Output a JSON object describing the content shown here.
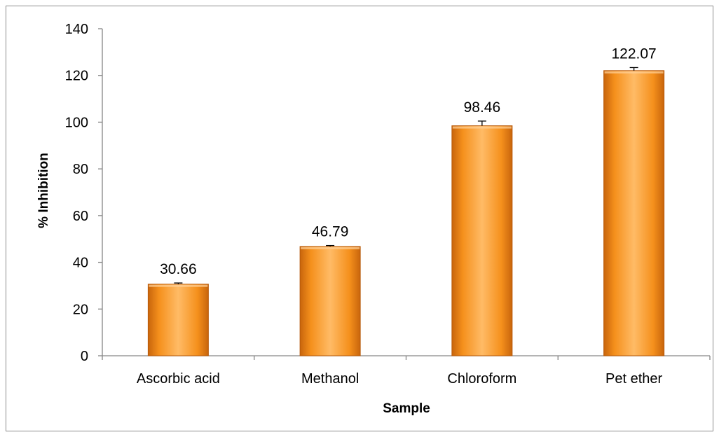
{
  "chart_data": {
    "type": "bar",
    "title": "",
    "xlabel": "Sample",
    "ylabel": "% Inhibition",
    "categories": [
      "Ascorbic acid",
      "Methanol",
      "Chloroform",
      "Pet ether"
    ],
    "values": [
      30.66,
      46.79,
      98.46,
      122.07
    ],
    "data_labels": [
      "30.66",
      "46.79",
      "98.46",
      "122.07"
    ],
    "error_bars": [
      0.5,
      0.4,
      2.0,
      1.3
    ],
    "ylim": [
      0,
      140
    ],
    "yticks": [
      0,
      20,
      40,
      60,
      80,
      100,
      120,
      140
    ],
    "ytick_labels": [
      "0",
      "20",
      "40",
      "60",
      "80",
      "100",
      "120",
      "140"
    ],
    "grid": false,
    "legend": "none",
    "colors": {
      "bar_light": "#ffb85c",
      "bar_mid": "#f7931e",
      "bar_dark": "#c4620a",
      "bar_edge": "#b85a0a",
      "axis": "#868686"
    }
  }
}
